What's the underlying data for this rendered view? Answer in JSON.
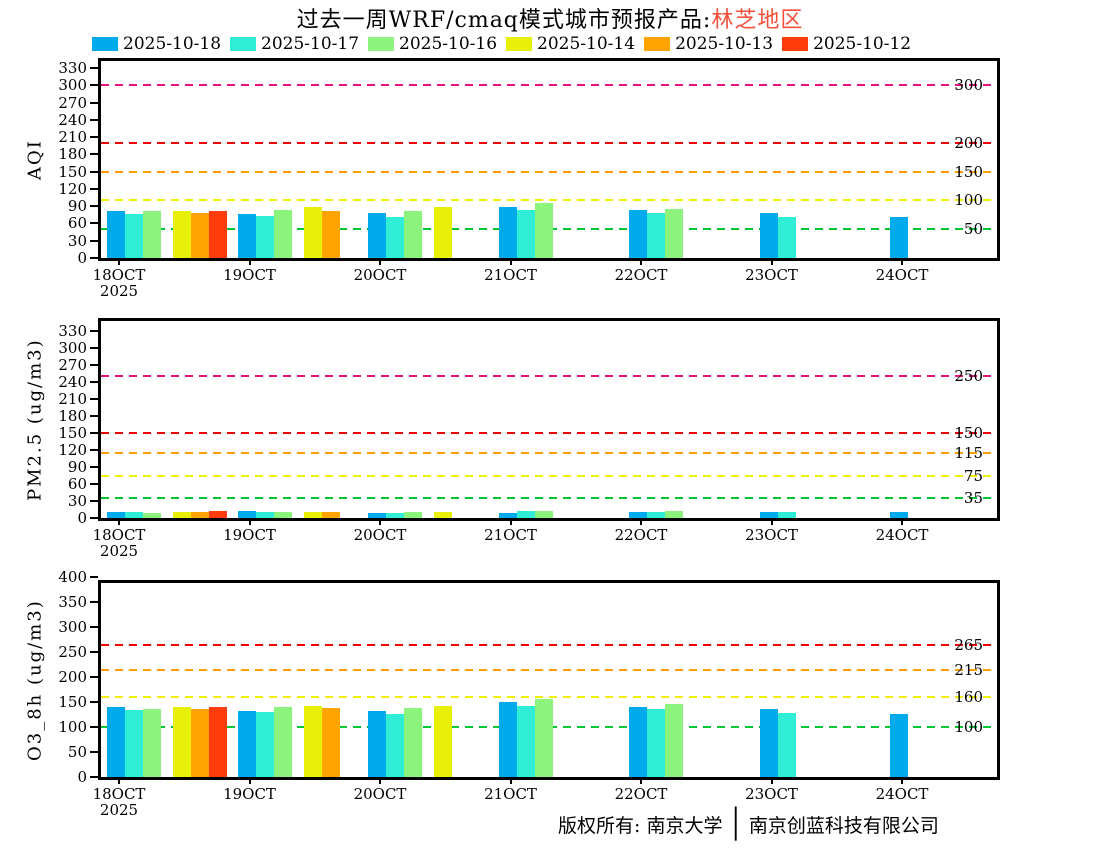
{
  "title": {
    "text": "过去一周WRF/cmaq模式城市预报产品:",
    "region": "林芝地区",
    "region_color": "#f4503c"
  },
  "legend": {
    "items": [
      {
        "label": "2025-10-18",
        "color": "#00aaec"
      },
      {
        "label": "2025-10-17",
        "color": "#30eed6"
      },
      {
        "label": "2025-10-16",
        "color": "#8cf47c"
      },
      {
        "label": "2025-10-14",
        "color": "#e8f00a"
      },
      {
        "label": "2025-10-13",
        "color": "#ffa400"
      },
      {
        "label": "2025-10-12",
        "color": "#ff3c0c"
      }
    ]
  },
  "x_axis": {
    "tick_labels": [
      "18OCT",
      "19OCT",
      "20OCT",
      "21OCT",
      "22OCT",
      "23OCT",
      "24OCT"
    ],
    "year_label": "2025"
  },
  "footer": {
    "prefix": "版权所有: 南京大学",
    "divider": "│",
    "company": "南京创蓝科技有限公司"
  },
  "chart_data": [
    {
      "type": "bar",
      "ylabel": "AQI",
      "ylim": [
        0,
        330
      ],
      "ytick_step": 30,
      "grid": false,
      "legend_position": "top",
      "categories": [
        "18OCT",
        "19OCT",
        "20OCT",
        "21OCT",
        "22OCT",
        "23OCT",
        "24OCT"
      ],
      "series": [
        {
          "name": "2025-10-18",
          "values": [
            81,
            77,
            78,
            89,
            84,
            78,
            71
          ]
        },
        {
          "name": "2025-10-17",
          "values": [
            77,
            73,
            72,
            84,
            79,
            72,
            null
          ]
        },
        {
          "name": "2025-10-16",
          "values": [
            81,
            84,
            82,
            95,
            85,
            null,
            null
          ]
        },
        {
          "name": "2025-10-14",
          "values": [
            81,
            88,
            88,
            null,
            null,
            null,
            null
          ]
        },
        {
          "name": "2025-10-13",
          "values": [
            79,
            81,
            null,
            null,
            null,
            null,
            null
          ]
        },
        {
          "name": "2025-10-12",
          "values": [
            81,
            null,
            null,
            null,
            null,
            null,
            null
          ]
        }
      ],
      "thresholds": [
        {
          "value": 50,
          "label": "50",
          "color": "#00c832"
        },
        {
          "value": 100,
          "label": "100",
          "color": "#f0f000"
        },
        {
          "value": 150,
          "label": "150",
          "color": "#ff9e00"
        },
        {
          "value": 200,
          "label": "200",
          "color": "#f00000"
        },
        {
          "value": 300,
          "label": "300",
          "color": "#e6127d"
        }
      ]
    },
    {
      "type": "bar",
      "ylabel": "PM2.5 (ug/m3)",
      "ylim": [
        0,
        330
      ],
      "ytick_step": 30,
      "grid": false,
      "categories": [
        "18OCT",
        "19OCT",
        "20OCT",
        "21OCT",
        "22OCT",
        "23OCT",
        "24OCT"
      ],
      "series": [
        {
          "name": "2025-10-18",
          "values": [
            10,
            12,
            9,
            9,
            11,
            10,
            10
          ]
        },
        {
          "name": "2025-10-17",
          "values": [
            10,
            10,
            8,
            12,
            10,
            10,
            null
          ]
        },
        {
          "name": "2025-10-16",
          "values": [
            8,
            11,
            11,
            13,
            12,
            null,
            null
          ]
        },
        {
          "name": "2025-10-14",
          "values": [
            10,
            11,
            10,
            null,
            null,
            null,
            null
          ]
        },
        {
          "name": "2025-10-13",
          "values": [
            10,
            11,
            null,
            null,
            null,
            null,
            null
          ]
        },
        {
          "name": "2025-10-12",
          "values": [
            12,
            null,
            null,
            null,
            null,
            null,
            null
          ]
        }
      ],
      "thresholds": [
        {
          "value": 35,
          "label": "35",
          "color": "#00c832"
        },
        {
          "value": 75,
          "label": "75",
          "color": "#f0f000"
        },
        {
          "value": 115,
          "label": "115",
          "color": "#ff9e00"
        },
        {
          "value": 150,
          "label": "150",
          "color": "#f00000"
        },
        {
          "value": 250,
          "label": "250",
          "color": "#e6127d"
        }
      ]
    },
    {
      "type": "bar",
      "ylabel": "O3_8h (ug/m3)",
      "ylim": [
        0,
        400
      ],
      "ytick_step": 50,
      "grid": false,
      "categories": [
        "18OCT",
        "19OCT",
        "20OCT",
        "21OCT",
        "22OCT",
        "23OCT",
        "24OCT"
      ],
      "series": [
        {
          "name": "2025-10-18",
          "values": [
            140,
            133,
            132,
            150,
            140,
            136,
            127
          ]
        },
        {
          "name": "2025-10-17",
          "values": [
            134,
            130,
            127,
            143,
            136,
            128,
            null
          ]
        },
        {
          "name": "2025-10-16",
          "values": [
            137,
            140,
            138,
            156,
            147,
            null,
            null
          ]
        },
        {
          "name": "2025-10-14",
          "values": [
            140,
            142,
            142,
            null,
            null,
            null,
            null
          ]
        },
        {
          "name": "2025-10-13",
          "values": [
            136,
            138,
            null,
            null,
            null,
            null,
            null
          ]
        },
        {
          "name": "2025-10-12",
          "values": [
            140,
            null,
            null,
            null,
            null,
            null,
            null
          ]
        }
      ],
      "thresholds": [
        {
          "value": 100,
          "label": "100",
          "color": "#00c832"
        },
        {
          "value": 160,
          "label": "160",
          "color": "#f0f000"
        },
        {
          "value": 215,
          "label": "215",
          "color": "#ff9e00"
        },
        {
          "value": 265,
          "label": "265",
          "color": "#f00000"
        }
      ]
    }
  ]
}
